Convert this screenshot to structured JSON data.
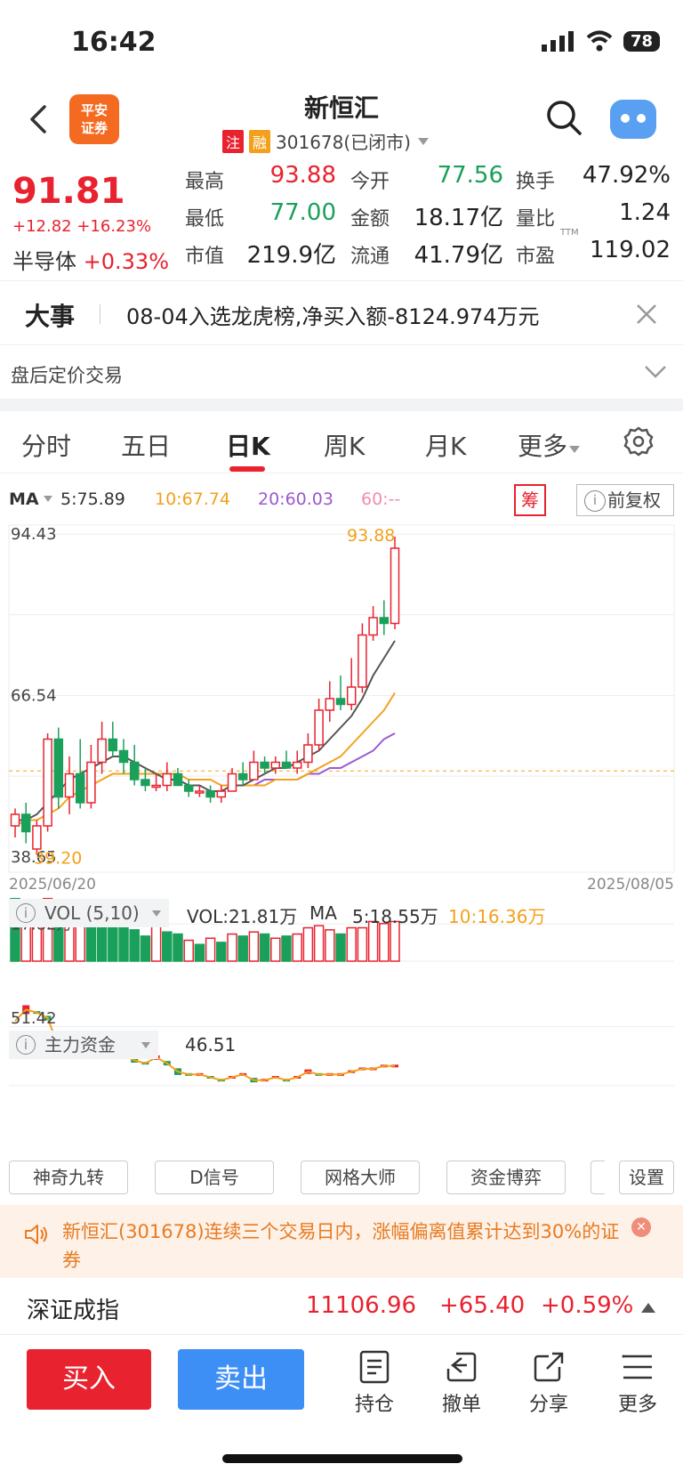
{
  "status": {
    "time": "16:42",
    "battery": "78"
  },
  "header": {
    "logo_line1": "平安",
    "logo_line2": "证券",
    "name": "新恒汇",
    "tag1": "注",
    "tag2": "融",
    "code_status": "301678(已闭市)"
  },
  "quote": {
    "price": "91.81",
    "change": "+12.82 +16.23%",
    "sector_name": "半导体",
    "sector_change": "+0.33%",
    "rows": [
      [
        {
          "l": "最高",
          "v": "93.88",
          "c": "red"
        },
        {
          "l": "今开",
          "v": "77.56",
          "c": "green"
        },
        {
          "l": "换手",
          "v": "47.92%",
          "c": ""
        }
      ],
      [
        {
          "l": "最低",
          "v": "77.00",
          "c": "green"
        },
        {
          "l": "金额",
          "v": "18.17亿",
          "c": ""
        },
        {
          "l": "量比",
          "v": "1.24",
          "c": ""
        }
      ],
      [
        {
          "l": "市值",
          "v": "219.9亿",
          "c": ""
        },
        {
          "l": "流通",
          "v": "41.79亿",
          "c": ""
        },
        {
          "l": "市盈",
          "v": "119.02",
          "c": ""
        }
      ]
    ],
    "ttm": "TTM"
  },
  "event": {
    "title": "大事",
    "text": "08-04入选龙虎榜,净买入额-8124.974万元"
  },
  "after_hours": "盘后定价交易",
  "tabs": [
    "分时",
    "五日",
    "日K",
    "周K",
    "月K",
    "更多"
  ],
  "ma": {
    "label": "MA",
    "ma5": "5:75.89",
    "ma10": "10:67.74",
    "ma20": "20:60.03",
    "ma60": "60:--",
    "chou": "筹",
    "fuquan": "前复权"
  },
  "chart_data": {
    "type": "candlestick",
    "y_labels": [
      "94.43",
      "66.54",
      "38.65"
    ],
    "high_label": "93.88",
    "low_label": "39.20",
    "start_date": "2025/06/20",
    "end_date": "2025/08/05",
    "candles": [
      [
        44,
        46,
        42,
        47
      ],
      [
        46,
        43,
        41,
        48
      ],
      [
        40,
        44,
        39,
        45
      ],
      [
        44,
        59,
        43,
        60
      ],
      [
        59,
        49,
        47,
        61
      ],
      [
        49,
        53,
        46,
        56
      ],
      [
        53,
        48,
        47,
        59
      ],
      [
        48,
        55,
        47,
        58
      ],
      [
        55,
        59,
        53,
        62
      ],
      [
        59,
        57,
        56,
        62
      ],
      [
        57,
        55,
        53,
        59
      ],
      [
        55,
        52,
        51,
        58
      ],
      [
        52,
        51,
        50,
        54
      ],
      [
        51,
        51,
        50,
        53
      ],
      [
        51,
        53,
        50,
        55
      ],
      [
        53,
        51,
        51,
        54
      ],
      [
        51,
        50,
        49,
        52
      ],
      [
        50,
        50,
        49,
        51
      ],
      [
        50,
        49,
        48,
        51
      ],
      [
        49,
        50,
        48,
        51
      ],
      [
        50,
        53,
        50,
        54
      ],
      [
        53,
        52,
        51,
        55
      ],
      [
        52,
        55,
        52,
        57
      ],
      [
        55,
        54,
        53,
        56
      ],
      [
        54,
        55,
        53,
        56
      ],
      [
        55,
        54,
        54,
        57
      ],
      [
        54,
        55,
        53,
        57
      ],
      [
        55,
        58,
        54,
        60
      ],
      [
        58,
        64,
        57,
        66
      ],
      [
        64,
        66,
        62,
        69
      ],
      [
        66,
        65,
        64,
        70
      ],
      [
        65,
        68,
        64,
        73
      ],
      [
        68,
        77,
        67,
        79
      ],
      [
        77,
        80,
        76,
        82
      ],
      [
        80,
        79,
        77,
        83
      ],
      [
        79,
        92,
        78,
        94
      ]
    ],
    "ma5": [
      45,
      45,
      46,
      48,
      50,
      52,
      53,
      54,
      55,
      56,
      56,
      55,
      54,
      53,
      52,
      52,
      51,
      51,
      50,
      50,
      51,
      51,
      52,
      53,
      54,
      54,
      55,
      56,
      57,
      59,
      61,
      63,
      66,
      70,
      73,
      76
    ],
    "ma10": [
      44,
      45,
      45,
      46,
      47,
      49,
      50,
      51,
      52,
      53,
      53,
      53,
      53,
      53,
      53,
      53,
      52,
      52,
      52,
      51,
      51,
      51,
      51,
      51,
      52,
      52,
      52,
      53,
      54,
      55,
      56,
      58,
      60,
      62,
      64,
      67
    ],
    "ma20": [
      null,
      null,
      null,
      null,
      null,
      null,
      null,
      null,
      null,
      null,
      null,
      null,
      null,
      null,
      null,
      null,
      null,
      null,
      null,
      null,
      51,
      51,
      51,
      52,
      52,
      52,
      52,
      53,
      53,
      54,
      54,
      55,
      56,
      57,
      59,
      60
    ],
    "volume_head": {
      "label": "VOL (5,10)",
      "vol": "VOL:21.81万",
      "ma": "MA",
      "ma5": "5:18.55万",
      "ma10": "10:16.36万",
      "y_label": "17.82万"
    },
    "volumes": [
      {
        "v": 30,
        "up": false
      },
      {
        "v": 29,
        "up": true
      },
      {
        "v": 29,
        "up": true
      },
      {
        "v": 30,
        "up": true
      },
      {
        "v": 23,
        "up": false
      },
      {
        "v": 23,
        "up": true
      },
      {
        "v": 23,
        "up": true
      },
      {
        "v": 21,
        "up": false
      },
      {
        "v": 22,
        "up": false
      },
      {
        "v": 20,
        "up": false
      },
      {
        "v": 18,
        "up": false
      },
      {
        "v": 15,
        "up": false
      },
      {
        "v": 12,
        "up": false
      },
      {
        "v": 18,
        "up": true
      },
      {
        "v": 14,
        "up": false
      },
      {
        "v": 13,
        "up": false
      },
      {
        "v": 10,
        "up": true
      },
      {
        "v": 8,
        "up": false
      },
      {
        "v": 11,
        "up": true
      },
      {
        "v": 9,
        "up": false
      },
      {
        "v": 13,
        "up": true
      },
      {
        "v": 12,
        "up": false
      },
      {
        "v": 14,
        "up": true
      },
      {
        "v": 13,
        "up": false
      },
      {
        "v": 11,
        "up": true
      },
      {
        "v": 12,
        "up": false
      },
      {
        "v": 13,
        "up": true
      },
      {
        "v": 16,
        "up": true
      },
      {
        "v": 17,
        "up": true
      },
      {
        "v": 15,
        "up": true
      },
      {
        "v": 13,
        "up": false
      },
      {
        "v": 16,
        "up": true
      },
      {
        "v": 16,
        "up": true
      },
      {
        "v": 19,
        "up": true
      },
      {
        "v": 18,
        "up": true
      },
      {
        "v": 19,
        "up": true
      }
    ],
    "fund_head": {
      "label": "主力资金",
      "value": "46.51",
      "y_label": "51.42"
    },
    "fund": [
      48,
      52,
      51,
      49,
      39,
      42,
      40,
      39,
      37,
      37,
      36,
      34,
      33,
      35,
      33,
      30,
      29,
      29,
      28,
      27,
      28,
      29,
      27,
      27,
      28,
      27,
      28,
      30,
      29,
      29,
      29,
      30,
      31,
      31,
      32,
      32
    ]
  },
  "indicators": [
    "神奇九转",
    "D信号",
    "网格大师",
    "资金博弈",
    "设置"
  ],
  "notice": "新恒汇(301678)连续三个交易日内，涨幅偏离值累计达到30%的证券",
  "index": {
    "name": "深证成指",
    "value": "11106.96",
    "change": "+65.40",
    "pct": "+0.59%"
  },
  "bottom": {
    "buy": "买入",
    "sell": "卖出",
    "items": [
      "持仓",
      "撤单",
      "分享",
      "更多"
    ]
  }
}
